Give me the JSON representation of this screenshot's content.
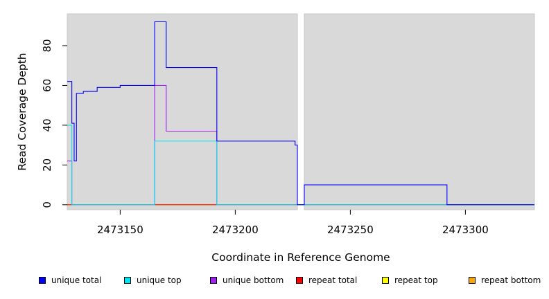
{
  "chart_data": {
    "type": "line",
    "xlabel": "Coordinate in Reference Genome",
    "ylabel": "Read Coverage Depth",
    "xlim": [
      2473127,
      2473330
    ],
    "ylim": [
      -2.5,
      96
    ],
    "xticks": [
      2473150,
      2473200,
      2473250,
      2473300
    ],
    "yticks": [
      0,
      20,
      40,
      60,
      80
    ],
    "shaded_regions": [
      [
        2473127,
        2473227
      ],
      [
        2473230,
        2473330
      ]
    ],
    "series": [
      {
        "name": "unique total",
        "color": "#0000ff",
        "x": [
          2473127,
          2473129,
          2473129,
          2473130,
          2473130,
          2473131,
          2473131,
          2473134,
          2473134,
          2473140,
          2473140,
          2473150,
          2473150,
          2473165,
          2473165,
          2473170,
          2473170,
          2473192,
          2473192,
          2473226,
          2473226,
          2473227,
          2473227,
          2473230,
          2473230,
          2473292,
          2473292,
          2473330
        ],
        "y": [
          62,
          62,
          41,
          41,
          22,
          22,
          56,
          56,
          57,
          57,
          59,
          59,
          60,
          60,
          92,
          92,
          69,
          69,
          32,
          32,
          30,
          30,
          0,
          0,
          10,
          10,
          0,
          0
        ]
      },
      {
        "name": "unique top",
        "color": "#00e5ee",
        "x": [
          2473127,
          2473129,
          2473129,
          2473165,
          2473165,
          2473192,
          2473192,
          2473330
        ],
        "y": [
          40,
          40,
          0,
          0,
          32,
          32,
          0,
          0
        ]
      },
      {
        "name": "unique bottom",
        "color": "#a020f0",
        "x": [
          2473127,
          2473129,
          2473129,
          2473165,
          2473165,
          2473170,
          2473170,
          2473192,
          2473192,
          2473330
        ],
        "y": [
          22,
          22,
          0,
          0,
          60,
          60,
          37,
          37,
          0,
          0
        ]
      },
      {
        "name": "repeat total",
        "color": "#ff0000",
        "x": [
          2473127,
          2473330
        ],
        "y": [
          0,
          0
        ]
      },
      {
        "name": "repeat top",
        "color": "#ffff00",
        "x": [
          2473127,
          2473330
        ],
        "y": [
          0,
          0
        ]
      },
      {
        "name": "repeat bottom",
        "color": "#ffa500",
        "x": [
          2473127,
          2473330
        ],
        "y": [
          0,
          0
        ]
      }
    ],
    "legend_position": "bottom",
    "grid": false
  },
  "legend": [
    {
      "label": "unique total",
      "color": "#0000ff"
    },
    {
      "label": "unique top",
      "color": "#00e5ee"
    },
    {
      "label": "unique bottom",
      "color": "#a020f0"
    },
    {
      "label": "repeat total",
      "color": "#ff0000"
    },
    {
      "label": "repeat top",
      "color": "#ffff00"
    },
    {
      "label": "repeat bottom",
      "color": "#ffa500"
    }
  ]
}
